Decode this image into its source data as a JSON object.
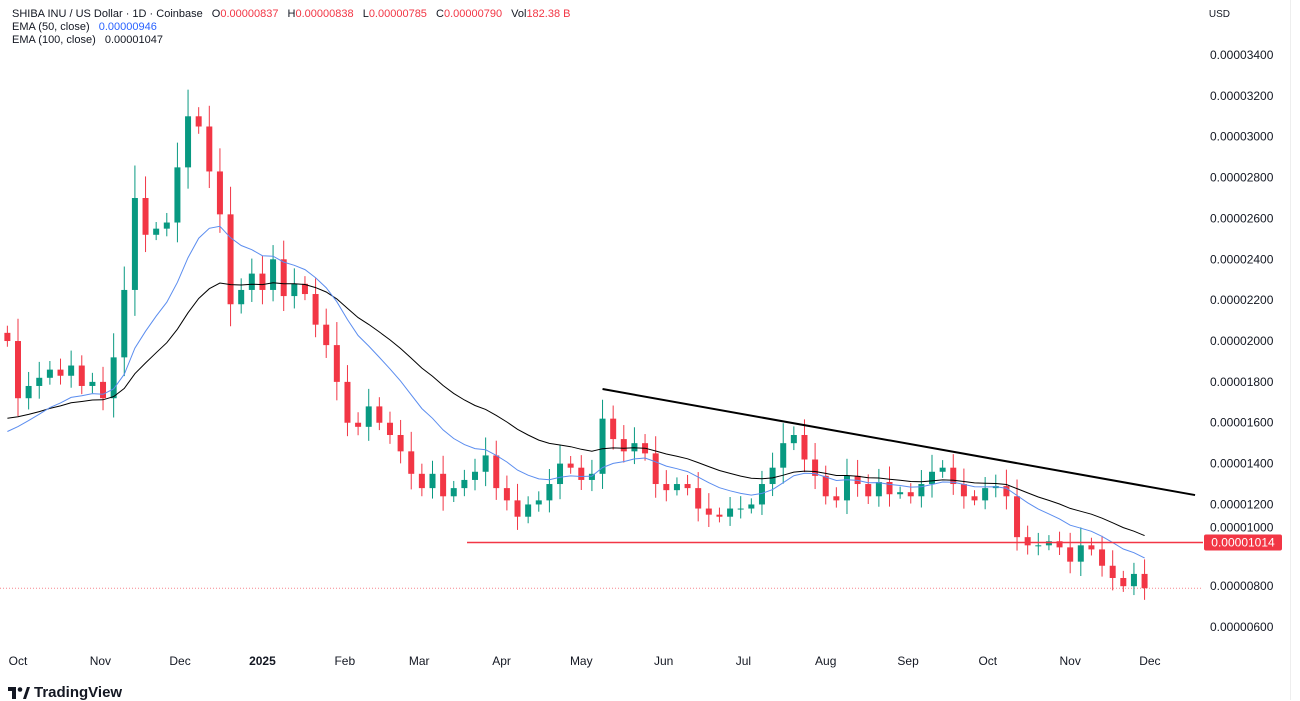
{
  "legend": {
    "symbol": "SHIBA INU / US Dollar · 1D · Coinbase",
    "o_label": "O",
    "o": "0.00000837",
    "h_label": "H",
    "h": "0.00000838",
    "l_label": "L",
    "l": "0.00000785",
    "c_label": "C",
    "c": "0.00000790",
    "vol_label": "Vol",
    "vol": "182.38 B",
    "ema50_label": "EMA (50, close)",
    "ema50": "0.00000946",
    "ema100_label": "EMA (100, close)",
    "ema100": "0.00001047"
  },
  "currency": "USD",
  "logo": "TradingView",
  "colors": {
    "up": "#089981",
    "down": "#f23645",
    "ema50": "#5b8def",
    "ema100": "#000000",
    "level": "#f23645"
  },
  "chart_data": {
    "type": "candlestick",
    "unit_multiplier": 1e-06,
    "start_date": "2024-09-27",
    "step_days": 4,
    "closes": [
      20.0,
      17.2,
      17.8,
      18.2,
      18.6,
      18.3,
      18.8,
      17.8,
      18.0,
      17.2,
      19.2,
      22.5,
      27.0,
      25.2,
      25.5,
      25.8,
      28.5,
      31.0,
      30.5,
      28.3,
      26.2,
      21.8,
      22.5,
      23.3,
      22.5,
      24.0,
      22.2,
      22.8,
      22.3,
      20.8,
      19.8,
      18.0,
      16.0,
      15.8,
      16.8,
      16.0,
      15.4,
      14.6,
      13.5,
      12.8,
      13.5,
      12.4,
      12.8,
      13.2,
      13.6,
      14.4,
      12.8,
      12.2,
      11.4,
      12.0,
      12.2,
      13.0,
      14.0,
      13.8,
      13.2,
      13.5,
      16.2,
      15.2,
      14.6,
      15.0,
      14.5,
      13.0,
      12.7,
      13.0,
      12.8,
      11.8,
      11.5,
      11.4,
      11.8,
      11.8,
      12.0,
      13.0,
      13.8,
      15.0,
      15.4,
      14.2,
      13.4,
      12.4,
      12.2,
      13.4,
      13.0,
      12.4,
      13.1,
      12.5,
      12.6,
      12.4,
      13.0,
      13.6,
      13.8,
      13.0,
      12.4,
      12.2,
      12.8,
      12.9,
      12.4,
      10.4,
      10.0,
      10.0,
      10.2,
      9.9,
      9.2,
      10.0,
      9.8,
      9.0,
      8.4,
      8.0,
      8.6,
      7.9
    ],
    "ema_start": {
      "ema50": 14.8,
      "ema100": 15.9
    },
    "trendline": {
      "start": [
        "2025-05-09",
        17.65
      ],
      "end": [
        "2025-12-18",
        12.46
      ]
    },
    "level": {
      "start": "2025-03-19",
      "value": 10.14,
      "label": "0.00001014"
    },
    "last_price": 7.9,
    "y_ticks": [
      "0.00003400",
      "0.00003200",
      "0.00003000",
      "0.00002800",
      "0.00002600",
      "0.00002400",
      "0.00002200",
      "0.00002000",
      "0.00001800",
      "0.00001600",
      "0.00001400",
      "0.00001200",
      "0.00001000",
      "0.00000800",
      "0.00000600"
    ],
    "y_tick_values": [
      34,
      32,
      30,
      28,
      26,
      24,
      22,
      20,
      18,
      16,
      14,
      12,
      10,
      8,
      6
    ],
    "ylim": [
      5,
      36
    ],
    "x_ticks": [
      {
        "label": "Oct",
        "date": "2024-10-01"
      },
      {
        "label": "Nov",
        "date": "2024-11-01"
      },
      {
        "label": "Dec",
        "date": "2024-12-01"
      },
      {
        "label": "2025",
        "date": "2025-01-01",
        "bold": true
      },
      {
        "label": "Feb",
        "date": "2025-02-01"
      },
      {
        "label": "Mar",
        "date": "2025-03-01"
      },
      {
        "label": "Apr",
        "date": "2025-04-01"
      },
      {
        "label": "May",
        "date": "2025-05-01"
      },
      {
        "label": "Jun",
        "date": "2025-06-01"
      },
      {
        "label": "Jul",
        "date": "2025-07-01"
      },
      {
        "label": "Aug",
        "date": "2025-08-01"
      },
      {
        "label": "Sep",
        "date": "2025-09-01"
      },
      {
        "label": "Oct",
        "date": "2025-10-01"
      },
      {
        "label": "Nov",
        "date": "2025-11-01"
      },
      {
        "label": "Dec",
        "date": "2025-12-01"
      }
    ]
  }
}
